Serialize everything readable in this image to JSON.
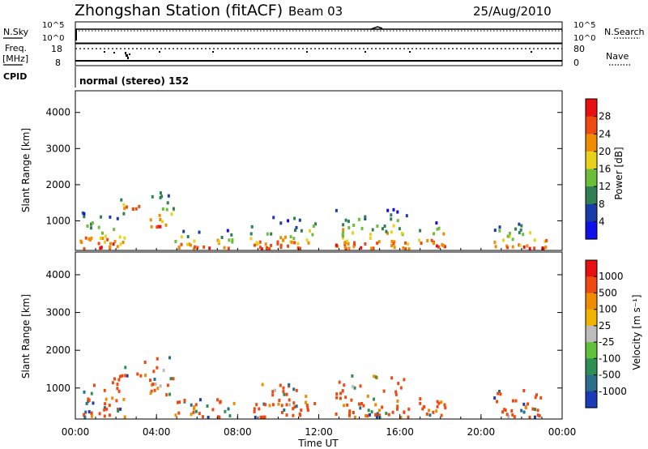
{
  "header": {
    "title": "Zhongshan Station (fitACF)",
    "beam": "Beam 03",
    "date": "25/Aug/2010"
  },
  "info_panels": {
    "nsky": {
      "label": "N.Sky",
      "tick_top": "10^5",
      "tick_bottom": "10^0"
    },
    "nsearch": {
      "label": "N.Search",
      "tick_top": "10^5",
      "tick_bottom": "10^0"
    },
    "freq": {
      "label_line1": "Freq.",
      "label_line2": "[MHz]",
      "tick_top": "18",
      "tick_bottom": "8"
    },
    "nave": {
      "label": "Nave",
      "tick_top": "80",
      "tick_bottom": "0"
    },
    "cpid": {
      "label": "CPID",
      "value": "normal (stereo) 152"
    }
  },
  "chart_data": [
    {
      "type": "heatmap",
      "title": "",
      "ylabel": "Slant Range [km]",
      "xlabel": "",
      "ylim": [
        180,
        4600
      ],
      "yticks": [
        1000,
        2000,
        3000,
        4000
      ],
      "xlim_hours": [
        0,
        24
      ],
      "colorbar": {
        "label": "Power [dB]",
        "ticks": [
          "4",
          "8",
          "12",
          "16",
          "20",
          "24",
          "28"
        ],
        "colors": [
          "#1010e8",
          "#1a3ca8",
          "#2e7f52",
          "#6cbd3a",
          "#e8d21c",
          "#f08c00",
          "#f04a12",
          "#e81010"
        ]
      },
      "echo_regions": [
        {
          "t0": 0.2,
          "t1": 2.4,
          "r0": 200,
          "r1": 1300
        },
        {
          "t0": 2.2,
          "t1": 3.4,
          "r0": 1300,
          "r1": 1700
        },
        {
          "t0": 3.6,
          "t1": 4.8,
          "r0": 800,
          "r1": 1800
        },
        {
          "t0": 4.8,
          "t1": 7.8,
          "r0": 200,
          "r1": 750
        },
        {
          "t0": 8.6,
          "t1": 11.8,
          "r0": 200,
          "r1": 1100
        },
        {
          "t0": 12.8,
          "t1": 16.4,
          "r0": 200,
          "r1": 1300
        },
        {
          "t0": 16.8,
          "t1": 18.2,
          "r0": 250,
          "r1": 1000
        },
        {
          "t0": 20.6,
          "t1": 23.2,
          "r0": 200,
          "r1": 950
        }
      ]
    },
    {
      "type": "heatmap",
      "title": "",
      "ylabel": "Slant Range [km]",
      "xlabel": "Time UT",
      "ylim": [
        180,
        4600
      ],
      "yticks": [
        1000,
        2000,
        3000,
        4000
      ],
      "xlim_hours": [
        0,
        24
      ],
      "xticks": [
        "00:00",
        "04:00",
        "08:00",
        "12:00",
        "16:00",
        "20:00",
        "00:00"
      ],
      "colorbar": {
        "label": "Velocity [m s⁻¹]",
        "ticks": [
          "1000",
          "500",
          "100",
          "25",
          "-25",
          "-100",
          "-500",
          "-1000"
        ],
        "colors": [
          "#1a3cb8",
          "#2a6e8a",
          "#2e8f52",
          "#5ec23a",
          "#bcbcbc",
          "#f0b400",
          "#f08c00",
          "#f04a12",
          "#e81010"
        ]
      }
    }
  ]
}
